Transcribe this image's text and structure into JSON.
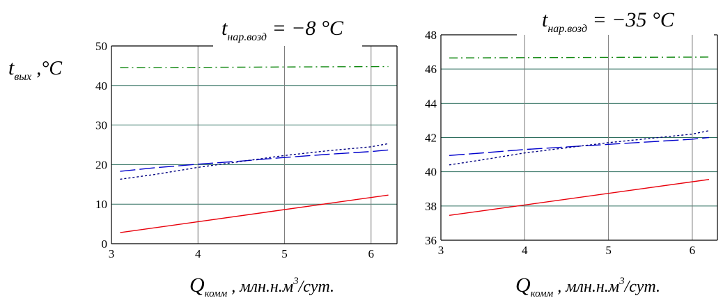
{
  "chart_data": [
    {
      "type": "line",
      "title_main": "t",
      "title_sub": "нар.возд",
      "title_rest": " = −8 °C",
      "ylabel_main": "t",
      "ylabel_sub": "вых",
      "ylabel_rest": " ,°C",
      "xlabel_main": "Q",
      "xlabel_sub": "комм",
      "xlabel_rest": " , млн.н.м",
      "xlabel_sup": "3",
      "xlabel_tail": "/сут.",
      "xlim": [
        3,
        6.3
      ],
      "ylim": [
        0,
        50
      ],
      "xticks": [
        3,
        4,
        5,
        6
      ],
      "yticks": [
        0,
        10,
        20,
        30,
        40,
        50
      ],
      "grid": true,
      "series": [
        {
          "x": [
            3.1,
            6.2
          ],
          "y": [
            2.8,
            12.3
          ],
          "color": "#e8000b",
          "dash": ""
        },
        {
          "x": [
            3.1,
            3.5,
            4.0,
            4.5,
            5.0,
            5.5,
            6.0,
            6.2
          ],
          "y": [
            18.3,
            19.2,
            20.1,
            20.9,
            21.8,
            22.6,
            23.3,
            23.7
          ],
          "color": "#0000cc",
          "dash": "22 6"
        },
        {
          "x": [
            3.1,
            3.5,
            4.0,
            4.5,
            5.0,
            5.5,
            6.0,
            6.2
          ],
          "y": [
            16.3,
            17.5,
            19.3,
            20.8,
            22.3,
            23.5,
            24.5,
            25.3
          ],
          "color": "#000080",
          "dash": "3 3"
        },
        {
          "x": [
            3.1,
            6.2
          ],
          "y": [
            44.5,
            44.8
          ],
          "color": "#118811",
          "dash": "12 5 2 5"
        }
      ]
    },
    {
      "type": "line",
      "title_main": "t",
      "title_sub": "нар.возд",
      "title_rest": " = −35 °C",
      "xlabel_main": "Q",
      "xlabel_sub": "комм",
      "xlabel_rest": " , млн.н.м",
      "xlabel_sup": "3",
      "xlabel_tail": "/сут.",
      "xlim": [
        3,
        6.3
      ],
      "ylim": [
        36,
        48
      ],
      "xticks": [
        3,
        4,
        5,
        6
      ],
      "yticks": [
        36,
        38,
        40,
        42,
        44,
        46,
        48
      ],
      "grid": true,
      "series": [
        {
          "x": [
            3.1,
            6.2
          ],
          "y": [
            37.45,
            39.55
          ],
          "color": "#e8000b",
          "dash": ""
        },
        {
          "x": [
            3.1,
            3.5,
            4.0,
            4.5,
            5.0,
            5.5,
            6.0,
            6.2
          ],
          "y": [
            40.95,
            41.1,
            41.3,
            41.45,
            41.6,
            41.75,
            41.9,
            42.0
          ],
          "color": "#0000cc",
          "dash": "22 6"
        },
        {
          "x": [
            3.1,
            3.5,
            4.0,
            4.5,
            5.0,
            5.5,
            6.0,
            6.2
          ],
          "y": [
            40.4,
            40.7,
            41.1,
            41.4,
            41.7,
            41.95,
            42.2,
            42.4
          ],
          "color": "#000080",
          "dash": "3 3"
        },
        {
          "x": [
            3.1,
            6.2
          ],
          "y": [
            46.65,
            46.7
          ],
          "color": "#118811",
          "dash": "12 5 2 5"
        }
      ]
    }
  ]
}
